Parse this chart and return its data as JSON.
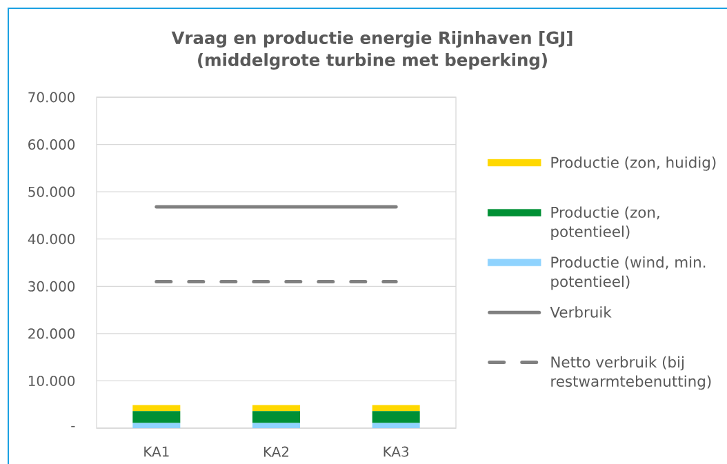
{
  "chart_data": {
    "type": "bar",
    "title": "Vraag en productie energie Rijnhaven [GJ]",
    "subtitle": "(middelgrote turbine met beperking)",
    "categories": [
      "KA1",
      "KA2",
      "KA3"
    ],
    "stacked": true,
    "series": [
      {
        "name": "Productie (wind, min. potentieel)",
        "color": "#8fd3fe",
        "values": [
          1100,
          1100,
          1100
        ]
      },
      {
        "name": "Productie (zon, potentieel)",
        "color": "#009035",
        "values": [
          2500,
          2500,
          2500
        ]
      },
      {
        "name": "Productie (zon, huidig)",
        "color": "#ffd800",
        "values": [
          1300,
          1300,
          1300
        ]
      },
      {
        "name": "Verbruik",
        "type": "line",
        "color": "#808080",
        "values": [
          46800,
          46800,
          46800
        ]
      },
      {
        "name": "Netto verbruik (bij restwarmtebenutting)",
        "type": "line",
        "color": "#808080",
        "line_style": "dashed",
        "values": [
          31000,
          31000,
          31000
        ]
      }
    ],
    "ylim": [
      0,
      70000
    ],
    "yticks": [
      {
        "value": 0,
        "label": "-"
      },
      {
        "value": 10000,
        "label": "10.000"
      },
      {
        "value": 20000,
        "label": "20.000"
      },
      {
        "value": 30000,
        "label": "30.000"
      },
      {
        "value": 40000,
        "label": "40.000"
      },
      {
        "value": 50000,
        "label": "50.000"
      },
      {
        "value": 60000,
        "label": "60.000"
      },
      {
        "value": 70000,
        "label": "70.000"
      }
    ],
    "grid": "y",
    "legend": "right"
  }
}
